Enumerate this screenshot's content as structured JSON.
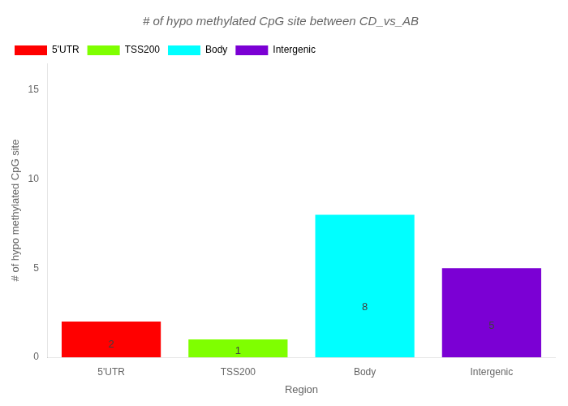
{
  "chart_data": {
    "type": "bar",
    "title": "# of hypo methylated CpG site between CD_vs_AB",
    "xlabel": "Region",
    "ylabel": "# of hypo methylated CpG site",
    "categories": [
      "5'UTR",
      "TSS200",
      "Body",
      "Intergenic"
    ],
    "values": [
      2,
      1,
      8,
      5
    ],
    "colors": [
      "#FF0000",
      "#7FFF00",
      "#00FFFF",
      "#7B00D4"
    ],
    "ylim": [
      0,
      16.5
    ],
    "yticks": [
      0,
      5,
      10,
      15
    ],
    "grid": false,
    "legend": "upper left",
    "data_labels": true
  }
}
